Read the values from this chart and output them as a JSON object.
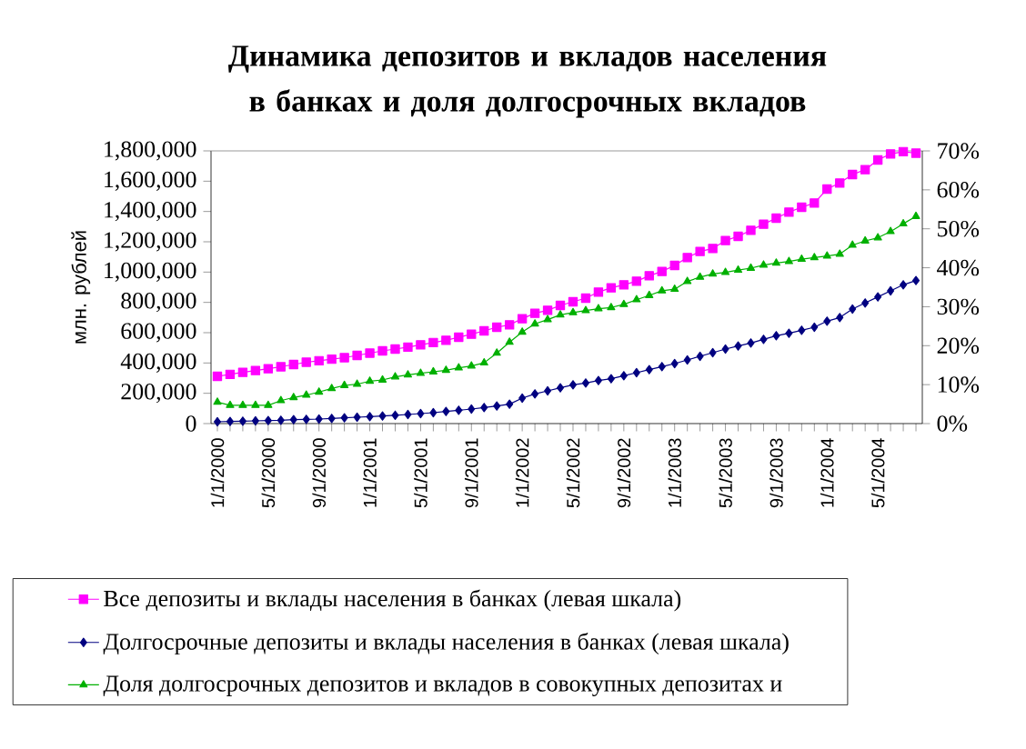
{
  "chart_data": {
    "type": "line",
    "title": "Динамика депозитов и вкладов населения в банках и доля долгосрочных вкладов",
    "ylabel": "млн. рублей",
    "categories": [
      "1/1/2000",
      null,
      null,
      null,
      "5/1/2000",
      null,
      null,
      null,
      "9/1/2000",
      null,
      null,
      null,
      "1/1/2001",
      null,
      null,
      null,
      "5/1/2001",
      null,
      null,
      null,
      "9/1/2001",
      null,
      null,
      null,
      "1/1/2002",
      null,
      null,
      null,
      "5/1/2002",
      null,
      null,
      null,
      "9/1/2002",
      null,
      null,
      null,
      "1/1/2003",
      null,
      null,
      null,
      "5/1/2003",
      null,
      null,
      null,
      "9/1/2003",
      null,
      null,
      null,
      "1/1/2004",
      null,
      null,
      null,
      "5/1/2004",
      null,
      null,
      null
    ],
    "series": [
      {
        "name": "Все депозиты и вклады населения в банках (левая шкала)",
        "color": "#ff00ff",
        "marker": "square",
        "values": [
          312000,
          325000,
          338000,
          350000,
          362000,
          375000,
          390000,
          405000,
          415000,
          425000,
          435000,
          450000,
          465000,
          480000,
          492000,
          505000,
          520000,
          535000,
          550000,
          570000,
          590000,
          612000,
          636000,
          652000,
          692000,
          728000,
          748000,
          780000,
          804000,
          828000,
          868000,
          896000,
          916000,
          940000,
          976000,
          1004000,
          1044000,
          1096000,
          1136000,
          1156000,
          1208000,
          1236000,
          1276000,
          1316000,
          1356000,
          1396000,
          1428000,
          1456000,
          1548000,
          1588000,
          1644000,
          1676000,
          1740000,
          1780000,
          1795000,
          1785000
        ]
      },
      {
        "name": "Долгосрочные депозиты и вклады населения в банках (левая шкала)",
        "color": "#000080",
        "marker": "diamond",
        "values": [
          12000,
          14000,
          16000,
          18000,
          20000,
          22000,
          26000,
          28000,
          30000,
          34000,
          38000,
          42000,
          46000,
          50000,
          55000,
          60000,
          66000,
          72000,
          80000,
          88000,
          96000,
          106000,
          116000,
          128000,
          168000,
          196000,
          216000,
          236000,
          256000,
          268000,
          284000,
          296000,
          316000,
          336000,
          356000,
          376000,
          396000,
          420000,
          444000,
          468000,
          492000,
          512000,
          532000,
          556000,
          580000,
          596000,
          616000,
          636000,
          676000,
          700000,
          756000,
          796000,
          836000,
          876000,
          916000,
          944000
        ]
      },
      {
        "name": "Доля долгосрочных депозитов и вкладов в совокупных депозитах и",
        "color": "#00b000",
        "marker": "triangle",
        "axis": "y2",
        "values": [
          5.5,
          4.7,
          4.7,
          4.7,
          4.7,
          5.9,
          6.7,
          7.3,
          8.1,
          9.0,
          9.8,
          10.1,
          10.9,
          11.2,
          12.0,
          12.5,
          12.9,
          13.3,
          13.7,
          14.3,
          14.8,
          15.6,
          18.1,
          20.9,
          23.5,
          25.6,
          26.7,
          27.9,
          28.5,
          29.0,
          29.5,
          29.8,
          30.6,
          31.8,
          32.9,
          34.1,
          34.5,
          36.5,
          37.6,
          38.4,
          38.8,
          39.4,
          39.9,
          40.7,
          41.2,
          41.6,
          42.2,
          42.6,
          43.0,
          43.5,
          45.8,
          46.9,
          47.7,
          49.3,
          51.3,
          53.2
        ]
      }
    ],
    "ylim": [
      0,
      1800000
    ],
    "yticks": [
      0,
      {
        "value": 200000,
        "label": "200,000"
      },
      {
        "value": 400000,
        "label": "400,000"
      },
      {
        "value": 600000,
        "label": "600,000"
      },
      {
        "value": 800000,
        "label": "800,000"
      },
      {
        "value": 1000000,
        "label": "1,000,000"
      },
      {
        "value": 1200000,
        "label": "1,200,000"
      },
      {
        "value": 1400000,
        "label": "1,400,000"
      },
      {
        "value": 1600000,
        "label": "1,600,000"
      },
      {
        "value": 1800000,
        "label": "1,800,000"
      }
    ],
    "y2lim": [
      0,
      70
    ],
    "y2ticks": [
      {
        "value": 0,
        "label": "0%"
      },
      {
        "value": 10,
        "label": "10%"
      },
      {
        "value": 20,
        "label": "20%"
      },
      {
        "value": 30,
        "label": "30%"
      },
      {
        "value": 40,
        "label": "40%"
      },
      {
        "value": 50,
        "label": "50%"
      },
      {
        "value": 60,
        "label": "60%"
      },
      {
        "value": 70,
        "label": "70%"
      }
    ],
    "legend": "bottom"
  }
}
